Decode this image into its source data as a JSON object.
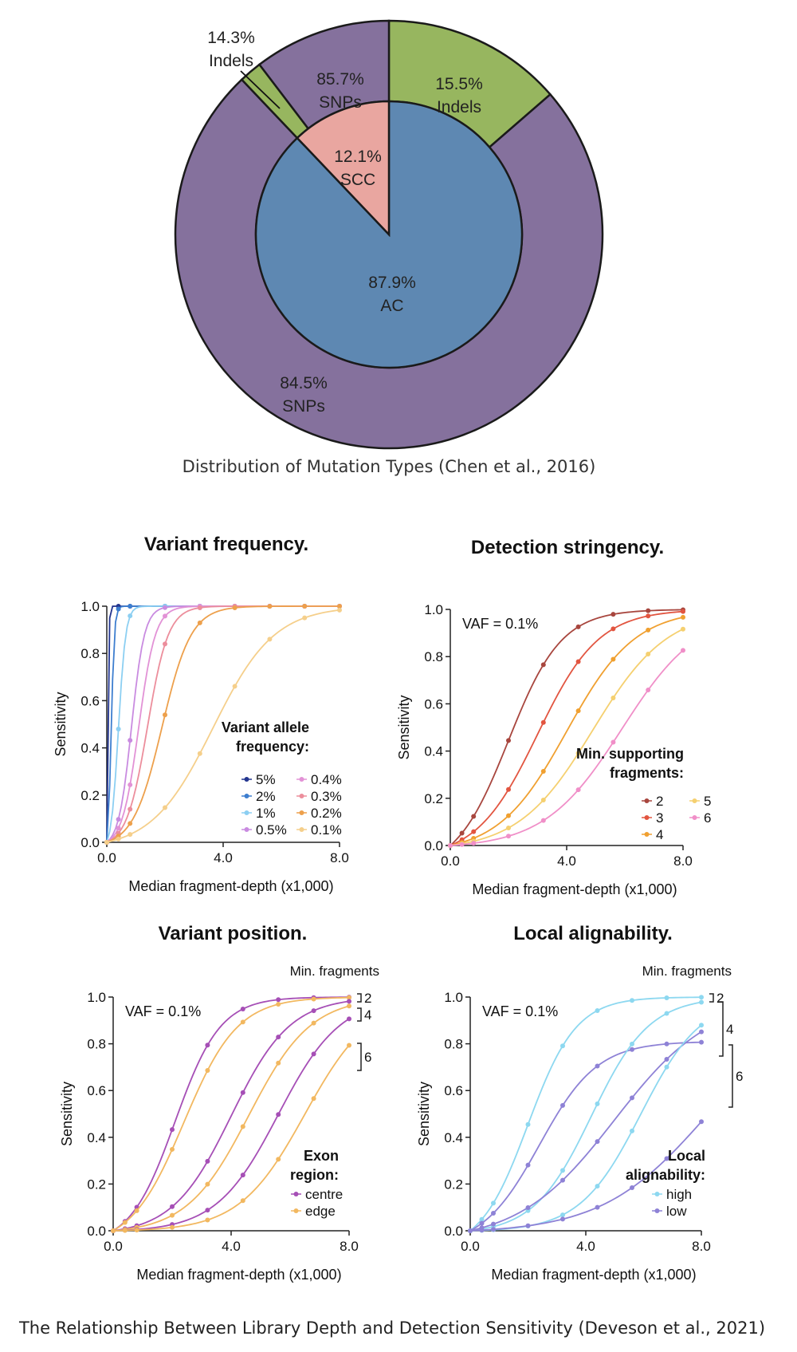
{
  "pie_chart": {
    "caption": "Distribution of Mutation Types (Chen et al., 2016)",
    "colors": {
      "snps": "#85719D",
      "indels": "#97B65F",
      "ac": "#5E88B2",
      "scc": "#E9A6A0",
      "outline": "#1a1a1a"
    },
    "inner": [
      {
        "pct": "87.9%",
        "name": "AC",
        "value": 87.9
      },
      {
        "pct": "12.1%",
        "name": "SCC",
        "value": 12.1
      }
    ],
    "outer": [
      {
        "pct": "84.5%",
        "name": "SNPs",
        "value": 84.5
      },
      {
        "pct": "15.5%",
        "name": "Indels",
        "value": 15.5
      },
      {
        "pct": "85.7%",
        "name": "SNPs",
        "value": 85.7
      },
      {
        "pct": "14.3%",
        "name": "Indels",
        "value": 14.3
      }
    ]
  },
  "line_charts_caption": "The Relationship Between Library Depth and Detection Sensitivity (Deveson et al., 2021)",
  "chart_data": [
    {
      "type": "donut",
      "title": "",
      "rings": {
        "inner": {
          "labels": [
            "AC",
            "SCC"
          ],
          "values": [
            87.9,
            12.1
          ]
        },
        "outer_ac": {
          "labels": [
            "SNPs",
            "Indels"
          ],
          "values": [
            84.5,
            15.5
          ]
        },
        "outer_scc": {
          "labels": [
            "SNPs",
            "Indels"
          ],
          "values": [
            85.7,
            14.3
          ]
        }
      }
    },
    {
      "type": "line",
      "title": "Variant frequency.",
      "xlabel": "Median fragment-depth (x1,000)",
      "ylabel": "Sensitivity",
      "xlim": [
        0,
        8
      ],
      "ylim": [
        0,
        1
      ],
      "xticks": [
        "0.0",
        "4.0",
        "8.0"
      ],
      "yticks": [
        "0.0",
        "0.2",
        "0.4",
        "0.6",
        "0.8",
        "1.0"
      ],
      "annotation": "",
      "legend_title": [
        "Variant allele",
        "frequency:"
      ],
      "legend_columns": 2,
      "bracket_header": "",
      "brackets": [],
      "series": [
        {
          "name": "5%",
          "color": "#23358F",
          "midpoint": 0.05,
          "steepness": 60
        },
        {
          "name": "2%",
          "color": "#3D7ECF",
          "midpoint": 0.15,
          "steepness": 18
        },
        {
          "name": "1%",
          "color": "#8CCFF2",
          "midpoint": 0.4,
          "steepness": 8
        },
        {
          "name": "0.5%",
          "color": "#C98BE0",
          "midpoint": 0.85,
          "steepness": 4.5
        },
        {
          "name": "0.4%",
          "color": "#E292D6",
          "midpoint": 1.1,
          "steepness": 3.5
        },
        {
          "name": "0.3%",
          "color": "#EC8E9C",
          "midpoint": 1.4,
          "steepness": 2.8
        },
        {
          "name": "0.2%",
          "color": "#EDA04C",
          "midpoint": 1.9,
          "steepness": 2.0
        },
        {
          "name": "0.1%",
          "color": "#F5CF8B",
          "midpoint": 3.65,
          "steepness": 0.95
        }
      ]
    },
    {
      "type": "line",
      "title": "Detection stringency.",
      "xlabel": "Median fragment-depth (x1,000)",
      "ylabel": "Sensitivity",
      "xlim": [
        0,
        8
      ],
      "ylim": [
        0,
        1
      ],
      "xticks": [
        "0.0",
        "4.0",
        "8.0"
      ],
      "yticks": [
        "0.0",
        "0.2",
        "0.4",
        "0.6",
        "0.8",
        "1.0"
      ],
      "annotation": "VAF = 0.1%",
      "legend_title": [
        "Min. supporting",
        "fragments:"
      ],
      "legend_columns": 2,
      "bracket_header": "",
      "brackets": [],
      "series": [
        {
          "name": "2",
          "color": "#A8463E",
          "midpoint": 2.0,
          "steepness": 1.1
        },
        {
          "name": "3",
          "color": "#E25540",
          "midpoint": 3.0,
          "steepness": 0.95
        },
        {
          "name": "4",
          "color": "#F0A030",
          "midpoint": 4.0,
          "steepness": 0.85
        },
        {
          "name": "5",
          "color": "#F5D070",
          "midpoint": 4.9,
          "steepness": 0.78
        },
        {
          "name": "6",
          "color": "#F08FC8",
          "midpoint": 5.9,
          "steepness": 0.75
        }
      ]
    },
    {
      "type": "line",
      "title": "Variant position.",
      "xlabel": "Median fragment-depth (x1,000)",
      "ylabel": "Sensitivity",
      "xlim": [
        0,
        8
      ],
      "ylim": [
        0,
        1
      ],
      "xticks": [
        "0.0",
        "4.0",
        "8.0"
      ],
      "yticks": [
        "0.0",
        "0.2",
        "0.4",
        "0.6",
        "0.8",
        "1.0"
      ],
      "annotation": "VAF = 0.1%",
      "legend_title": [
        "Exon",
        "region:"
      ],
      "legend_columns": 1,
      "bracket_header": "Min. fragments",
      "brackets": [
        "2",
        "4",
        "6"
      ],
      "series": [
        {
          "name": "centre",
          "color": "#A64FB6",
          "midpoint": 2.1,
          "steepness": 1.3
        },
        {
          "name": "edge",
          "color": "#F2B860",
          "midpoint": 2.4,
          "steepness": 1.1
        },
        {
          "name": "centre",
          "color": "#A64FB6",
          "midpoint": 4.0,
          "steepness": 1.0,
          "legend": false
        },
        {
          "name": "edge",
          "color": "#F2B860",
          "midpoint": 4.6,
          "steepness": 0.95,
          "legend": false
        },
        {
          "name": "centre",
          "color": "#A64FB6",
          "midpoint": 5.6,
          "steepness": 0.95,
          "legend": false
        },
        {
          "name": "edge",
          "color": "#F2B860",
          "midpoint": 6.5,
          "steepness": 0.9,
          "legend": false
        }
      ]
    },
    {
      "type": "line",
      "title": "Local alignability.",
      "xlabel": "Median fragment-depth (x1,000)",
      "ylabel": "Sensitivity",
      "xlim": [
        0,
        8
      ],
      "ylim": [
        0,
        1
      ],
      "xticks": [
        "0.0",
        "4.0",
        "8.0"
      ],
      "yticks": [
        "0.0",
        "0.2",
        "0.4",
        "0.6",
        "0.8",
        "1.0"
      ],
      "annotation": "VAF = 0.1%",
      "legend_title": [
        "Local",
        "alignability:"
      ],
      "legend_columns": 1,
      "bracket_header": "Min. fragments",
      "brackets": [
        "2",
        "4",
        "6"
      ],
      "series": [
        {
          "name": "high",
          "color": "#8DD8F0",
          "midpoint": 2.0,
          "steepness": 1.2
        },
        {
          "name": "low",
          "color": "#8E82D6",
          "midpoint": 2.4,
          "steepness": 1.0,
          "max": 0.81
        },
        {
          "name": "high",
          "color": "#8DD8F0",
          "midpoint": 4.2,
          "steepness": 1.0,
          "legend": false
        },
        {
          "name": "low",
          "color": "#8E82D6",
          "midpoint": 5.0,
          "steepness": 0.6,
          "legend": false
        },
        {
          "name": "high",
          "color": "#8DD8F0",
          "midpoint": 5.9,
          "steepness": 0.95,
          "legend": false
        },
        {
          "name": "low",
          "color": "#8E82D6",
          "midpoint": 8.2,
          "steepness": 0.55,
          "legend": false
        }
      ]
    }
  ]
}
